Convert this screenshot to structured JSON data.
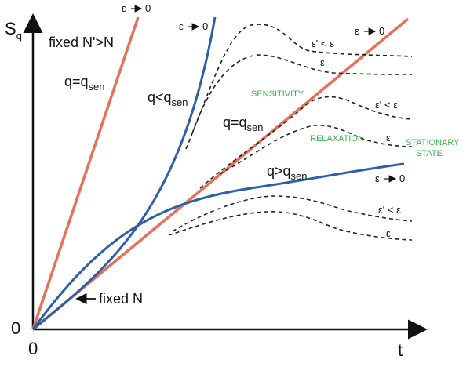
{
  "axes": {
    "y_label_main": "S",
    "y_label_sub": "q",
    "x_label": "t",
    "origin_x": "0",
    "origin_y": "0"
  },
  "labels": {
    "fixed_nprime": "fixed N'>N",
    "q_eq_qsen_1_main": "q=q",
    "q_eq_qsen_1_sub": "sen",
    "q_lt_qsen_main": "q<q",
    "q_lt_qsen_sub": "sen",
    "q_eq_qsen_2_main": "q=q",
    "q_eq_qsen_2_sub": "sen",
    "q_gt_qsen_main": "q>q",
    "q_gt_qsen_sub": "sen",
    "fixed_n": "fixed N",
    "eps_to_0_a": "ε",
    "eps_to_0_b": "ε",
    "eps_to_0_c": "ε",
    "eps_to_0_d": "ε",
    "zero_a": "0",
    "zero_b": "0",
    "zero_c": "0",
    "zero_d": "0",
    "eps_prime_lt_1": "ε' < ε",
    "eps_1": "ε",
    "eps_prime_lt_2": "ε' < ε",
    "eps_2": "ε",
    "eps_prime_lt_3": "ε' < ε",
    "eps_3": "ε"
  },
  "regions": {
    "sensitivity": "SENSITIVITY",
    "relaxation": "RELAXATION",
    "stationary_1": "STATIONARY",
    "stationary_2": "STATE"
  },
  "colors": {
    "red_curve": "#e8705a",
    "blue_curve": "#2e5fa8",
    "dashed": "#222222",
    "region_text": "#39b54a"
  }
}
